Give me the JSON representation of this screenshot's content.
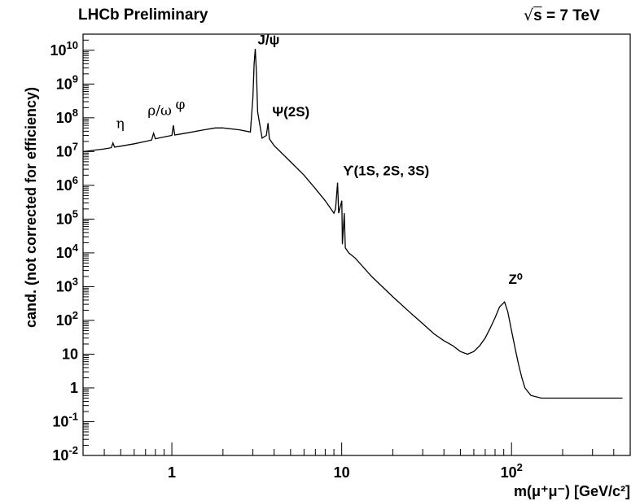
{
  "header": {
    "left_title": "LHCb Preliminary",
    "right_title": "= 7 TeV",
    "right_title_root": "s"
  },
  "chart_data": {
    "type": "line",
    "title": "LHCb Preliminary",
    "energy_label": "√s = 7 TeV",
    "xlabel": "m(μ⁺μ⁻) [GeV/c²]",
    "ylabel": "cand. (not corrected for efficiency)",
    "x_scale": "log",
    "y_scale": "log",
    "xlim": [
      0.3,
      500
    ],
    "ylim": [
      0.01,
      30000000000
    ],
    "x_ticks": [
      {
        "value": 1,
        "label": "1"
      },
      {
        "value": 10,
        "label": "10"
      },
      {
        "value": 100,
        "label": "10",
        "exp": "2"
      }
    ],
    "y_ticks": [
      {
        "value": 0.01,
        "label": "10",
        "exp": "-2"
      },
      {
        "value": 0.1,
        "label": "10",
        "exp": "-1"
      },
      {
        "value": 1,
        "label": "1"
      },
      {
        "value": 10,
        "label": "10"
      },
      {
        "value": 100,
        "label": "10",
        "exp": "2"
      },
      {
        "value": 1000,
        "label": "10",
        "exp": "3"
      },
      {
        "value": 10000,
        "label": "10",
        "exp": "4"
      },
      {
        "value": 100000,
        "label": "10",
        "exp": "5"
      },
      {
        "value": 1000000,
        "label": "10",
        "exp": "6"
      },
      {
        "value": 10000000,
        "label": "10",
        "exp": "7"
      },
      {
        "value": 100000000,
        "label": "10",
        "exp": "8"
      },
      {
        "value": 1000000000,
        "label": "10",
        "exp": "9"
      },
      {
        "value": 10000000000,
        "label": "10",
        "exp": "10"
      }
    ],
    "grid": false,
    "series": [
      {
        "points": [
          [
            0.3,
            10000000.0
          ],
          [
            0.35,
            11000000.0
          ],
          [
            0.4,
            12000000.0
          ],
          [
            0.44,
            13000000.0
          ],
          [
            0.45,
            18000000.0
          ],
          [
            0.46,
            13500000.0
          ],
          [
            0.5,
            14500000.0
          ],
          [
            0.6,
            17000000.0
          ],
          [
            0.7,
            20000000.0
          ],
          [
            0.76,
            22000000.0
          ],
          [
            0.78,
            35000000.0
          ],
          [
            0.8,
            24000000.0
          ],
          [
            0.9,
            27000000.0
          ],
          [
            1.0,
            30000000.0
          ],
          [
            1.02,
            60000000.0
          ],
          [
            1.04,
            31000000.0
          ],
          [
            1.2,
            35000000.0
          ],
          [
            1.5,
            43000000.0
          ],
          [
            1.8,
            50000000.0
          ],
          [
            2.0,
            50000000.0
          ],
          [
            2.5,
            44000000.0
          ],
          [
            2.9,
            38000000.0
          ],
          [
            3.0,
            400000000.0
          ],
          [
            3.05,
            4000000000.0
          ],
          [
            3.097,
            11000000000.0
          ],
          [
            3.15,
            2000000000.0
          ],
          [
            3.2,
            150000000.0
          ],
          [
            3.4,
            25000000.0
          ],
          [
            3.6,
            30000000.0
          ],
          [
            3.686,
            70000000.0
          ],
          [
            3.75,
            24000000.0
          ],
          [
            4.0,
            15000000.0
          ],
          [
            5.0,
            5000000.0
          ],
          [
            6.0,
            2000000.0
          ],
          [
            7.0,
            800000.0
          ],
          [
            8.0,
            350000.0
          ],
          [
            9.0,
            150000.0
          ],
          [
            9.2,
            200000.0
          ],
          [
            9.46,
            1200000.0
          ],
          [
            9.6,
            150000.0
          ],
          [
            10.02,
            350000.0
          ],
          [
            10.1,
            18000.0
          ],
          [
            10.36,
            150000.0
          ],
          [
            10.5,
            14000.0
          ],
          [
            11.0,
            10000.0
          ],
          [
            12.0,
            7000.0
          ],
          [
            15.0,
            2000.0
          ],
          [
            20.0,
            500.0
          ],
          [
            25.0,
            180.0
          ],
          [
            30.0,
            80.0
          ],
          [
            35.0,
            40.0
          ],
          [
            40.0,
            25.0
          ],
          [
            45.0,
            18.0
          ],
          [
            50.0,
            12.0
          ],
          [
            55.0,
            10.0
          ],
          [
            60.0,
            12.0
          ],
          [
            65.0,
            18.0
          ],
          [
            70.0,
            30.0
          ],
          [
            75.0,
            60.0
          ],
          [
            80.0,
            120.0
          ],
          [
            85.0,
            250.0
          ],
          [
            91.0,
            350.0
          ],
          [
            95.0,
            180.0
          ],
          [
            100.0,
            50.0
          ],
          [
            105.0,
            15.0
          ],
          [
            110.0,
            5.0
          ],
          [
            115.0,
            2.0
          ],
          [
            120.0,
            1.0
          ],
          [
            130.0,
            0.6
          ],
          [
            150.0,
            0.5
          ],
          [
            200.0,
            0.5
          ],
          [
            300.0,
            0.5
          ],
          [
            450.0,
            0.5
          ]
        ]
      }
    ],
    "annotations": [
      {
        "text": "η",
        "x": 0.47,
        "y": 50000000.0,
        "style": "greek"
      },
      {
        "text": "ρ/ω",
        "x": 0.72,
        "y": 120000000.0,
        "style": "greek"
      },
      {
        "text": "φ",
        "x": 1.05,
        "y": 180000000.0,
        "style": "greek"
      },
      {
        "text": "J/ψ",
        "x": 3.2,
        "y": 15000000000.0,
        "style": "bold"
      },
      {
        "text": "Ψ(2S)",
        "x": 3.9,
        "y": 110000000.0,
        "style": "mixed"
      },
      {
        "text": "ϒ(1S, 2S, 3S)",
        "x": 10.2,
        "y": 2000000.0,
        "style": "mixed"
      },
      {
        "text": "Z⁰",
        "x": 96.0,
        "y": 1200.0,
        "style": "bold"
      }
    ]
  }
}
